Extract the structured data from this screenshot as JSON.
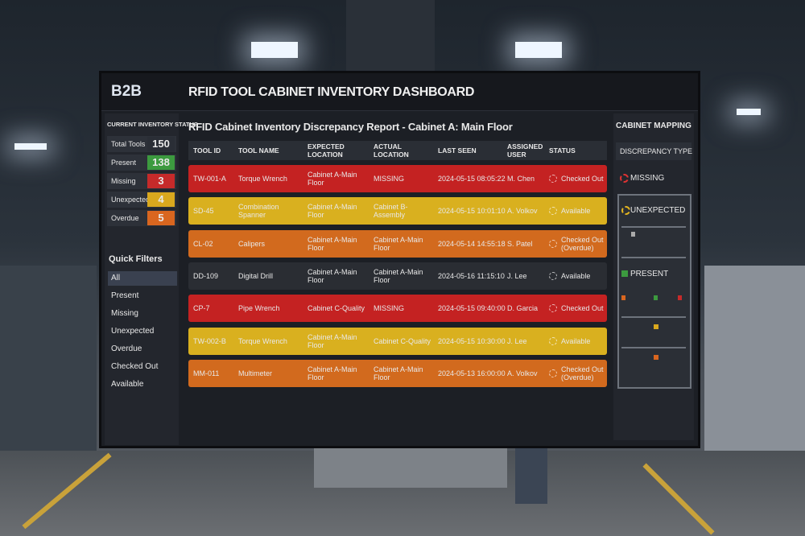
{
  "header": {
    "logo": "B2B",
    "title": "RFID TOOL CABINET INVENTORY DASHBOARD"
  },
  "sidebar": {
    "status_title": "CURRENT INVENTORY STATUS",
    "stats": [
      {
        "label": "Total Tools",
        "value": 150,
        "color": "#2a2e36"
      },
      {
        "label": "Present",
        "value": 138,
        "color": "#3c9a3f"
      },
      {
        "label": "Missing",
        "value": 3,
        "color": "#c62a2a"
      },
      {
        "label": "Unexpected",
        "value": 4,
        "color": "#d9a81e"
      },
      {
        "label": "Overdue",
        "value": 5,
        "color": "#d9661f"
      }
    ],
    "filters_title": "Quick Filters",
    "filters": [
      "All",
      "Present",
      "Missing",
      "Unexpected",
      "Overdue",
      "Checked Out",
      "Available"
    ]
  },
  "report": {
    "title": "RFID Cabinet Inventory Discrepancy Report - Cabinet A: Main Floor",
    "columns": [
      "TOOL ID",
      "TOOL NAME",
      "EXPECTED LOCATION",
      "ACTUAL LOCATION",
      "LAST SEEN",
      "ASSIGNED USER",
      "STATUS"
    ],
    "rows": [
      {
        "color": "#c42222",
        "cells": [
          "TW-001-A",
          "Torque Wrench",
          "Cabinet A-Main Floor",
          "MISSING",
          "2024-05-15 08:05:22",
          "M. Chen",
          "Checked Out"
        ]
      },
      {
        "color": "#d9b01f",
        "cells": [
          "SD-45",
          "Combination Spanner",
          "Cabinet A-Main Floor",
          "Cabinet B-Assembly",
          "2024-05-15 10:01:10",
          "A. Volkov",
          "Available"
        ]
      },
      {
        "color": "#d26a1e",
        "cells": [
          "CL-02",
          "Calipers",
          "Cabinet A-Main Floor",
          "Cabinet A-Main Floor",
          "2024-05-14 14:55:18",
          "S. Patel",
          "Checked Out (Overdue)"
        ]
      },
      {
        "color": "#2a2d33",
        "cells": [
          "DD-109",
          "Digital Drill",
          "Cabinet A-Main Floor",
          "Cabinet A-Main Floor",
          "2024-05-16 11:15:10",
          "J. Lee",
          "Available"
        ]
      },
      {
        "color": "#c42222",
        "cells": [
          "CP-7",
          "Pipe Wrench",
          "Cabinet C-Quality",
          "MISSING",
          "2024-05-15 09:40:00",
          "D. Garcia",
          "Checked Out"
        ]
      },
      {
        "color": "#d9b01f",
        "cells": [
          "TW-002-B",
          "Torque Wrench",
          "Cabinet A-Main Floor",
          "Cabinet C-Quality",
          "2024-05-15 10:30:00",
          "J. Lee",
          "Available"
        ]
      },
      {
        "color": "#d26a1e",
        "cells": [
          "MM-011",
          "Multimeter",
          "Cabinet A-Main Floor",
          "Cabinet A-Main Floor",
          "2024-05-13 16:00:00",
          "A. Volkov",
          "Checked Out (Overdue)"
        ]
      }
    ]
  },
  "mapping": {
    "title": "CABINET MAPPING",
    "legend_title": "DISCREPANCY TYPE",
    "missing": "MISSING",
    "unexpected": "UNEXPECTED",
    "present": "PRESENT"
  }
}
